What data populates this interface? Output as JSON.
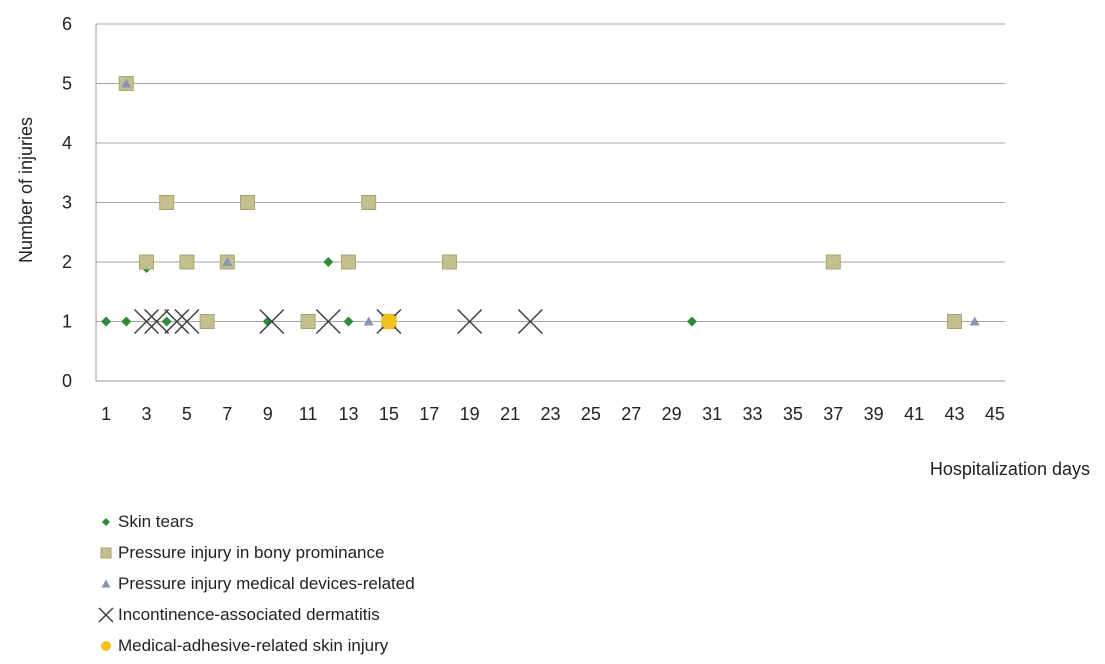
{
  "chart_data": {
    "type": "scatter",
    "title": "",
    "xlabel": "Hospitalization days",
    "ylabel": "Number of injuries",
    "xlim": [
      0.5,
      45.5
    ],
    "ylim": [
      0,
      6
    ],
    "x_ticks": [
      1,
      3,
      5,
      7,
      9,
      11,
      13,
      15,
      17,
      19,
      21,
      23,
      25,
      27,
      29,
      31,
      33,
      35,
      37,
      39,
      41,
      43,
      45
    ],
    "y_ticks": [
      0,
      1,
      2,
      3,
      4,
      5,
      6
    ],
    "grid": "horizontal",
    "legend_position": "bottom-left",
    "series": [
      {
        "name": "Skin tears",
        "marker": "diamond",
        "color": "#2e8b3a",
        "points": [
          [
            1,
            1
          ],
          [
            2,
            1
          ],
          [
            3,
            1.9
          ],
          [
            4,
            1
          ],
          [
            9,
            1
          ],
          [
            12,
            2
          ],
          [
            13,
            1
          ],
          [
            30,
            1
          ]
        ]
      },
      {
        "name": "Pressure injury in bony prominance",
        "marker": "square",
        "color": "#c3c08e",
        "points": [
          [
            2,
            5
          ],
          [
            3,
            2
          ],
          [
            4,
            3
          ],
          [
            5,
            2
          ],
          [
            6,
            1
          ],
          [
            7,
            2
          ],
          [
            8,
            3
          ],
          [
            11,
            1
          ],
          [
            13,
            2
          ],
          [
            14,
            3
          ],
          [
            15,
            1
          ],
          [
            18,
            2
          ],
          [
            37,
            2
          ],
          [
            43,
            1
          ]
        ]
      },
      {
        "name": "Pressure injury medical devices-related",
        "marker": "triangle",
        "color": "#8c94b4",
        "points": [
          [
            2,
            5
          ],
          [
            7,
            2
          ],
          [
            14,
            1
          ],
          [
            44,
            1
          ]
        ]
      },
      {
        "name": "Incontinence-associated dermatitis",
        "marker": "x",
        "color": "#404040",
        "points": [
          [
            3,
            1
          ],
          [
            3.5,
            1
          ],
          [
            4.5,
            1
          ],
          [
            5,
            1
          ],
          [
            9.2,
            1
          ],
          [
            12,
            1
          ],
          [
            15,
            1
          ],
          [
            19,
            1
          ],
          [
            22,
            1
          ]
        ]
      },
      {
        "name": "Medical-adhesive-related skin injury",
        "marker": "circle",
        "color": "#f1c21b",
        "points": [
          [
            15,
            1
          ]
        ]
      }
    ]
  }
}
